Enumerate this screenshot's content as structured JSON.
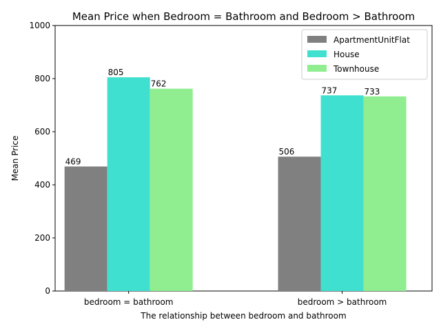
{
  "chart_data": {
    "type": "bar",
    "title": "Mean Price when Bedroom = Bathroom and Bedroom > Bathroom",
    "xlabel": "The relationship between bedroom and bathroom",
    "ylabel": "Mean Price",
    "categories": [
      "bedroom = bathroom",
      "bedroom > bathroom"
    ],
    "series": [
      {
        "name": "ApartmentUnitFlat",
        "values": [
          469,
          506
        ],
        "color": "#808080"
      },
      {
        "name": "House",
        "values": [
          805,
          737
        ],
        "color": "#40e0d0"
      },
      {
        "name": "Townhouse",
        "values": [
          762,
          733
        ],
        "color": "#90ee90"
      }
    ],
    "ylim": [
      0,
      1000
    ],
    "yticks": [
      0,
      200,
      400,
      600,
      800,
      1000
    ],
    "grid": false,
    "legend_position": "top-right"
  }
}
